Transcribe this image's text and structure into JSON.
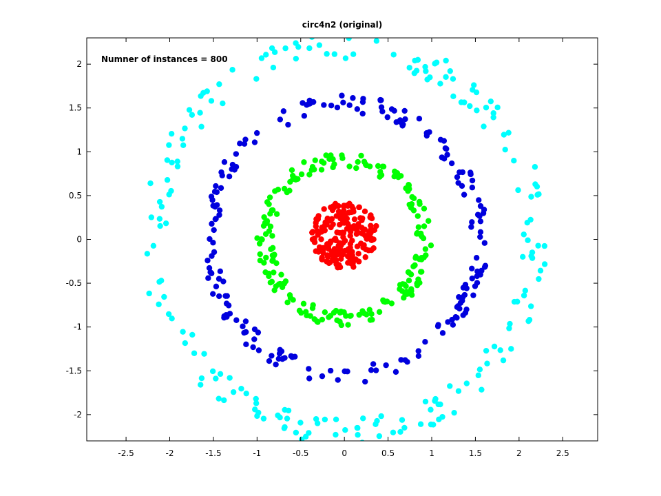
{
  "chart_data": {
    "type": "scatter",
    "title": "circ4n2 (original)",
    "annotation": "Numner of instances = 800",
    "xlabel": "",
    "ylabel": "",
    "xlim": [
      -2.95,
      2.9
    ],
    "ylim": [
      -2.3,
      2.3
    ],
    "xticks": [
      -2.5,
      -2,
      -1.5,
      -1,
      -0.5,
      0,
      0.5,
      1,
      1.5,
      2,
      2.5
    ],
    "yticks": [
      -2,
      -1.5,
      -1,
      -0.5,
      0,
      0.5,
      1,
      1.5,
      2
    ],
    "grid": false,
    "legend": "none",
    "box": true,
    "instances": 800,
    "series": [
      {
        "color": "#ff0000",
        "shape": "ring",
        "point_count": 200,
        "ring": {
          "r_min": 0.0,
          "r_max": 0.38,
          "center": [
            0.0,
            0.05
          ],
          "jitter_angle": 0
        }
      },
      {
        "color": "#00ff00",
        "shape": "ring",
        "point_count": 200,
        "ring": {
          "r_min": 0.82,
          "r_max": 1.0,
          "center": [
            0.0,
            0.0
          ],
          "jitter_angle": 0
        }
      },
      {
        "color": "#0000dd",
        "shape": "ring",
        "point_count": 200,
        "ring": {
          "r_min": 1.45,
          "r_max": 1.65,
          "center": [
            0.0,
            0.0
          ],
          "jitter_angle": 0
        }
      },
      {
        "color": "#00ffff",
        "shape": "ring",
        "point_count": 200,
        "ring": {
          "r_min": 2.05,
          "r_max": 2.35,
          "center": [
            0.0,
            0.0
          ],
          "jitter_angle": 0
        }
      }
    ]
  }
}
